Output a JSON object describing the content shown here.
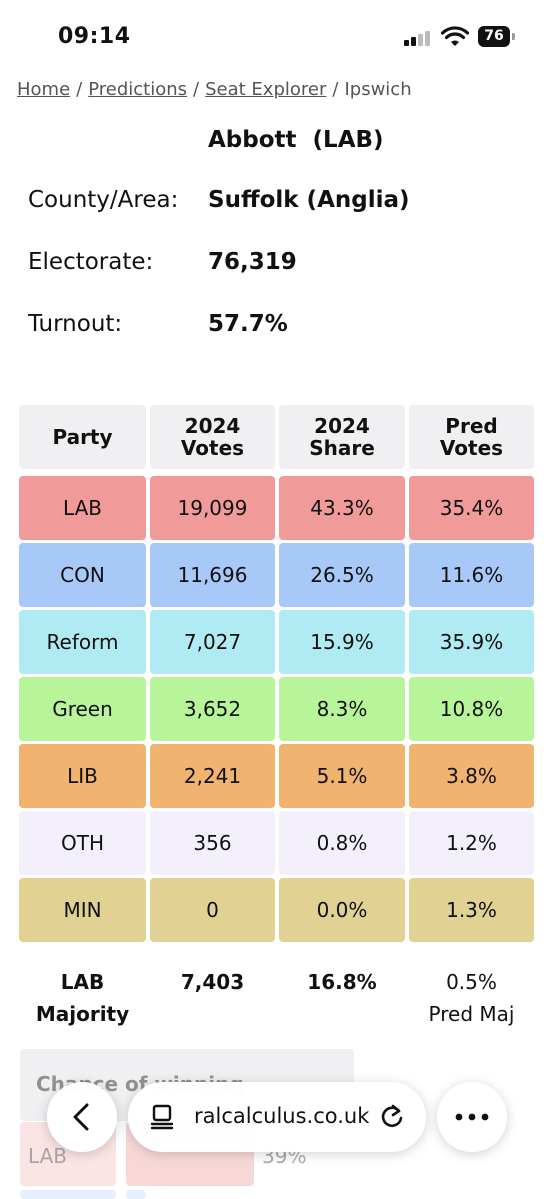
{
  "status": {
    "time": "09:14",
    "battery": "76"
  },
  "breadcrumb": {
    "home": "Home",
    "predictions": "Predictions",
    "seat_explorer": "Seat Explorer",
    "current": "Ipswich",
    "separator": "/"
  },
  "seat": {
    "mp": "Abbott  (LAB)",
    "rows": [
      {
        "label": "County/Area:",
        "value": "Suffolk (Anglia)"
      },
      {
        "label": "Electorate:",
        "value": "76,319"
      },
      {
        "label": "Turnout:",
        "value": "57.7%"
      }
    ]
  },
  "table": {
    "headers": [
      "Party",
      "2024\nVotes",
      "2024\nShare",
      "Pred\nVotes"
    ],
    "rows": [
      {
        "party": "LAB",
        "votes": "19,099",
        "share": "43.3%",
        "pred": "35.4%",
        "color": "#f09a9a"
      },
      {
        "party": "CON",
        "votes": "11,696",
        "share": "26.5%",
        "pred": "11.6%",
        "color": "#a8c8f8"
      },
      {
        "party": "Reform",
        "votes": "7,027",
        "share": "15.9%",
        "pred": "35.9%",
        "color": "#b0eaf2"
      },
      {
        "party": "Green",
        "votes": "3,652",
        "share": "8.3%",
        "pred": "10.8%",
        "color": "#b8f59a"
      },
      {
        "party": "LIB",
        "votes": "2,241",
        "share": "5.1%",
        "pred": "3.8%",
        "color": "#f0b370"
      },
      {
        "party": "OTH",
        "votes": "356",
        "share": "0.8%",
        "pred": "1.2%",
        "color": "#f3f0fc"
      },
      {
        "party": "MIN",
        "votes": "0",
        "share": "0.0%",
        "pred": "1.3%",
        "color": "#e1d193"
      }
    ],
    "totals": {
      "label": "LAB\nMajority",
      "votes": "7,403",
      "share": "16.8%",
      "pred": "0.5%\nPred Maj"
    }
  },
  "chance": {
    "title": "Chance of winning",
    "first_party": "LAB",
    "first_value": "39%"
  },
  "browser": {
    "url": "ralcalculus.co.uk",
    "back_icon": "chevron-left-icon",
    "reader_icon": "reader-icon",
    "reload_icon": "reload-icon",
    "more_icon": "more-icon"
  }
}
